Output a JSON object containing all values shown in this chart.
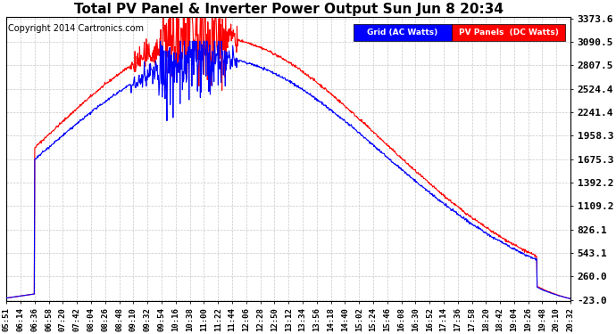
{
  "title": "Total PV Panel & Inverter Power Output Sun Jun 8 20:34",
  "copyright": "Copyright 2014 Cartronics.com",
  "legend_blue": "Grid (AC Watts)",
  "legend_red": "PV Panels  (DC Watts)",
  "ymin": -23.0,
  "ymax": 3373.6,
  "yticks": [
    -23.0,
    260.0,
    543.1,
    826.1,
    1109.2,
    1392.2,
    1675.3,
    1958.3,
    2241.4,
    2524.4,
    2807.5,
    3090.5,
    3373.6
  ],
  "ytick_labels": [
    "-23.0",
    "260.0",
    "543.1",
    "826.1",
    "1109.2",
    "1392.2",
    "1675.3",
    "1958.3",
    "2241.4",
    "2524.4",
    "2807.5",
    "3090.5",
    "3373.6"
  ],
  "xtick_labels": [
    "05:51",
    "06:14",
    "06:36",
    "06:58",
    "07:20",
    "07:42",
    "08:04",
    "08:26",
    "08:48",
    "09:10",
    "09:32",
    "09:54",
    "10:16",
    "10:38",
    "11:00",
    "11:22",
    "11:44",
    "12:06",
    "12:28",
    "12:50",
    "13:12",
    "13:34",
    "13:56",
    "14:18",
    "14:40",
    "15:02",
    "15:24",
    "15:46",
    "16:08",
    "16:30",
    "16:52",
    "17:14",
    "17:36",
    "17:58",
    "18:20",
    "18:42",
    "19:04",
    "19:26",
    "19:48",
    "20:10",
    "20:32"
  ],
  "bg_color": "#ffffff",
  "grid_color": "#c8c8c8",
  "blue_color": "#0000ff",
  "red_color": "#ff0000",
  "figwidth": 6.9,
  "figheight": 3.75,
  "dpi": 100
}
